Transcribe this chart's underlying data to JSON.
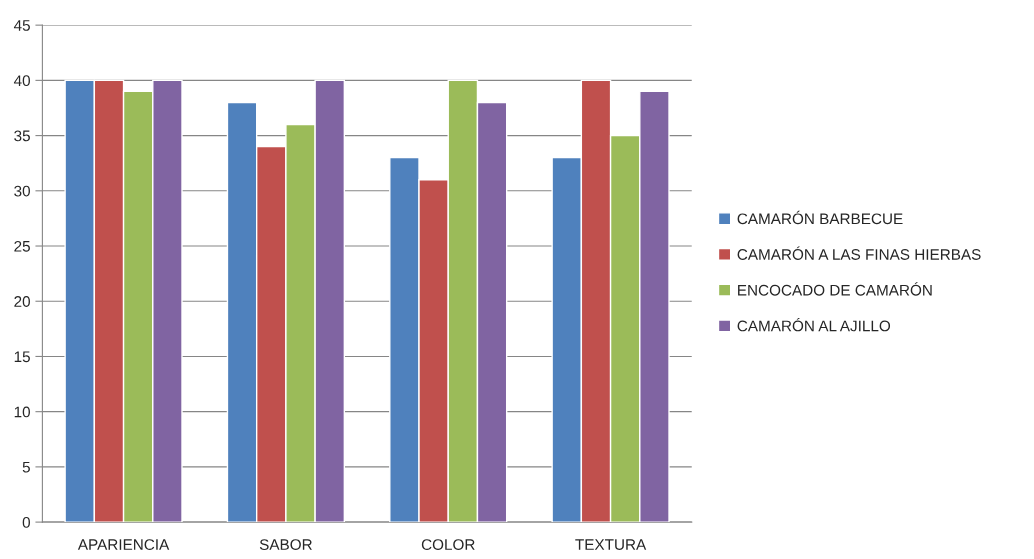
{
  "chart_data": {
    "type": "bar",
    "categories": [
      "APARIENCIA",
      "SABOR",
      "COLOR",
      "TEXTURA"
    ],
    "series": [
      {
        "name": "CAMARÓN BARBECUE",
        "color": "#4f81bd",
        "values": [
          40,
          38,
          33,
          33
        ]
      },
      {
        "name": "CAMARÓN A LAS FINAS HIERBAS",
        "color": "#c0504d",
        "values": [
          40,
          34,
          31,
          40
        ]
      },
      {
        "name": "ENCOCADO DE CAMARÓN",
        "color": "#9bbb59",
        "values": [
          39,
          36,
          40,
          35
        ]
      },
      {
        "name": "CAMARÓN AL AJILLO",
        "color": "#8064a2",
        "values": [
          40,
          40,
          38,
          39
        ]
      }
    ],
    "ylim": [
      0,
      45
    ],
    "yticks": [
      0,
      5,
      10,
      15,
      20,
      25,
      30,
      35,
      40,
      45
    ],
    "grid": "y",
    "legend": "right"
  }
}
